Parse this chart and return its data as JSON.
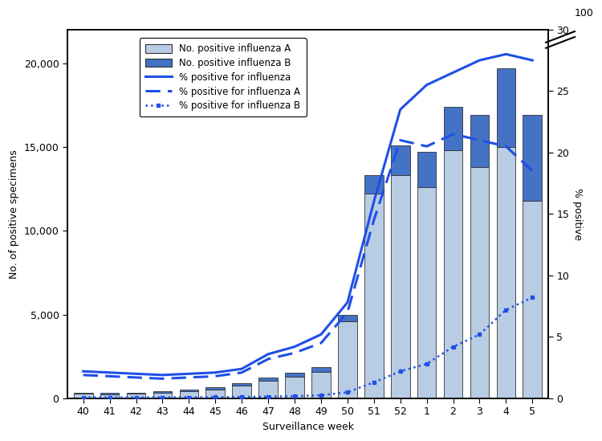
{
  "weeks": [
    "40",
    "41",
    "42",
    "43",
    "44",
    "45",
    "46",
    "47",
    "48",
    "49",
    "50",
    "51",
    "52",
    "1",
    "2",
    "3",
    "4",
    "5"
  ],
  "influenza_A": [
    270,
    230,
    260,
    310,
    430,
    520,
    750,
    1050,
    1300,
    1600,
    4600,
    12200,
    13300,
    12600,
    14800,
    13800,
    15000,
    11800
  ],
  "influenza_B": [
    70,
    80,
    90,
    100,
    110,
    130,
    160,
    200,
    240,
    280,
    380,
    1100,
    1800,
    2100,
    2600,
    3100,
    4700,
    5100
  ],
  "pct_influenza": [
    2.2,
    2.1,
    2.0,
    1.9,
    2.0,
    2.1,
    2.4,
    3.6,
    4.2,
    5.2,
    7.8,
    16.0,
    23.5,
    25.5,
    26.5,
    27.5,
    28.0,
    27.5
  ],
  "pct_influenza_A": [
    1.9,
    1.8,
    1.7,
    1.6,
    1.7,
    1.8,
    2.1,
    3.2,
    3.7,
    4.5,
    7.0,
    14.5,
    21.0,
    20.5,
    21.5,
    21.0,
    20.5,
    18.5
  ],
  "pct_influenza_B": [
    0.08,
    0.08,
    0.08,
    0.09,
    0.09,
    0.1,
    0.12,
    0.15,
    0.18,
    0.25,
    0.5,
    1.3,
    2.2,
    2.8,
    4.2,
    5.2,
    7.2,
    8.2
  ],
  "color_A": "#b8cce4",
  "color_B": "#4472c4",
  "line_color": "#1f4fe8",
  "ylabel_left": "No. of positive specimens",
  "ylabel_right": "% positive",
  "xlabel": "Surveillance week",
  "ylim_left": [
    0,
    22000
  ],
  "ylim_right": [
    0,
    30
  ],
  "yticks_left": [
    0,
    5000,
    10000,
    15000,
    20000
  ],
  "yticks_right": [
    0,
    5,
    10,
    15,
    20,
    25,
    30
  ],
  "legend_labels": [
    "No. positive influenza A",
    "No. positive influenza B",
    "% positive for influenza",
    "% positive for influenza A",
    "% positive for influenza B"
  ],
  "background_color": "#ffffff"
}
